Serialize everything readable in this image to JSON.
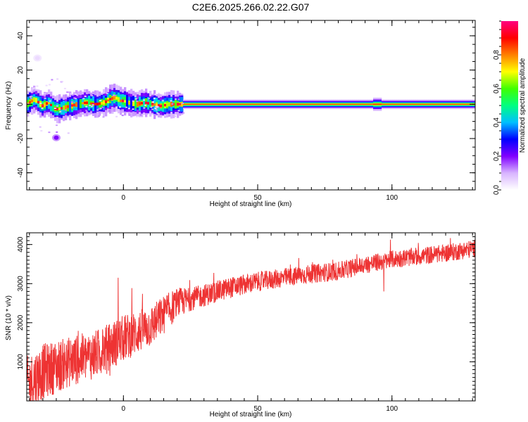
{
  "page_title": "C2E6.2025.266.02.22.G07",
  "chart_data": [
    {
      "type": "heatmap",
      "title": "C2E6.2025.266.02.22.G07",
      "xlabel": "Height of straight line (km)",
      "ylabel": "Frequency (Hz)",
      "xlim": [
        -36,
        131
      ],
      "ylim": [
        -50,
        49
      ],
      "xticks": [
        0,
        50,
        100
      ],
      "yticks": [
        -40,
        -20,
        0,
        20,
        40
      ],
      "xtick_labels": [
        "0",
        "50",
        "100"
      ],
      "ytick_labels": [
        "-40",
        "-20",
        "0",
        "20",
        "40"
      ],
      "grid": false,
      "colorbar": {
        "label": "Normalized spectral amplitude",
        "range": [
          0,
          1
        ],
        "ticks": [
          0,
          0.2,
          0.4,
          0.6,
          0.8
        ],
        "tick_labels": [
          "0.0",
          "0.2",
          "0.4",
          "0.6",
          "0.8"
        ],
        "colormap": "rainbow (white - violet - blue - cyan - green - yellow - orange - red - magenta)",
        "colors": [
          "#ffffff",
          "#d8b4ff",
          "#8000ff",
          "#0000ff",
          "#00c0ff",
          "#00ff80",
          "#40ff00",
          "#ffff00",
          "#ff8000",
          "#ff0000",
          "#ff0080"
        ]
      },
      "ridge": {
        "description": "dominant spectral line near 0 Hz",
        "x": [
          -36,
          -33,
          -30,
          -28,
          -25,
          -22,
          -20,
          -17,
          -14,
          -10,
          -7,
          -5,
          -3,
          -1,
          0,
          2,
          5,
          8,
          11,
          14,
          17,
          20,
          22,
          131
        ],
        "y": [
          0,
          3,
          -1,
          1,
          -3,
          -2,
          -1,
          0,
          1,
          0,
          1,
          3,
          4,
          2,
          2,
          1,
          0,
          1,
          0,
          -1,
          0,
          0,
          0,
          0
        ]
      },
      "outlier_blobs": [
        {
          "x": -25,
          "y": -19.5,
          "amplitude": 0.2
        },
        {
          "x": -32,
          "y": 27,
          "amplitude": 0.05
        }
      ]
    },
    {
      "type": "line",
      "xlabel": "Height of straight line (km)",
      "ylabel": "SNR (10 * v/v)",
      "xlim": [
        -36,
        131
      ],
      "ylim": [
        0,
        4300
      ],
      "xticks": [
        0,
        50,
        100
      ],
      "yticks": [
        1000,
        2000,
        3000,
        4000
      ],
      "xtick_labels": [
        "0",
        "50",
        "100"
      ],
      "ytick_labels": [
        "1000",
        "2000",
        "3000",
        "4000"
      ],
      "grid": false,
      "series": [
        {
          "name": "SNR",
          "color": "#ee3333",
          "trend_x": [
            -36,
            -30,
            -20,
            -10,
            0,
            10,
            20,
            30,
            40,
            50,
            60,
            70,
            80,
            90,
            95,
            100,
            110,
            120,
            131
          ],
          "trend_y": [
            400,
            750,
            1000,
            1200,
            1600,
            1900,
            2500,
            2700,
            2900,
            3050,
            3150,
            3250,
            3320,
            3480,
            3550,
            3620,
            3700,
            3780,
            3900
          ],
          "noise_amplitude_x": [
            -36,
            -20,
            0,
            15,
            25,
            50,
            100,
            131
          ],
          "noise_amplitude_y": [
            750,
            650,
            600,
            500,
            300,
            250,
            230,
            230
          ],
          "notable_points": [
            {
              "x": -2,
              "y": 3150
            },
            {
              "x": 97,
              "y": 4270
            },
            {
              "x": 97,
              "y": 2800
            },
            {
              "x": -6,
              "y": 1500
            }
          ]
        }
      ]
    }
  ]
}
